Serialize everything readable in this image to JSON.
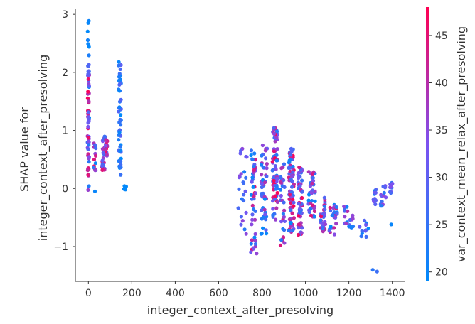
{
  "chart_data": {
    "type": "scatter",
    "title": "",
    "xlabel": "integer_context_after_presolving",
    "ylabel_lines": [
      "SHAP value for",
      "integer_context_after_presolving"
    ],
    "xlim": [
      -60,
      1460
    ],
    "ylim": [
      -1.6,
      3.1
    ],
    "x_ticks": [
      0,
      200,
      400,
      600,
      800,
      1000,
      1200,
      1400
    ],
    "x_tick_labels": [
      "0",
      "200",
      "400",
      "600",
      "800",
      "1000",
      "1200",
      "1400"
    ],
    "y_ticks": [
      -1,
      0,
      1,
      2,
      3
    ],
    "y_tick_labels": [
      "−1",
      "0",
      "1",
      "2",
      "3"
    ],
    "grid": false,
    "colorbar": {
      "label": "var_context_mean_relax_after_presolving",
      "range": [
        19,
        48
      ],
      "ticks": [
        20,
        25,
        30,
        35,
        40,
        45
      ],
      "tick_labels": [
        "20",
        "25",
        "30",
        "35",
        "40",
        "45"
      ],
      "colors": [
        "#008afb",
        "#7c52f0",
        "#ff0052"
      ]
    },
    "clusters": [
      {
        "x": 0,
        "xspread": 4,
        "ymin": -0.05,
        "ymax": 2.9,
        "n": 70,
        "cmin": 19,
        "cmax": 48,
        "skew_top_blue": true
      },
      {
        "x": 28,
        "xspread": 6,
        "ymin": 0.3,
        "ymax": 0.8,
        "n": 14,
        "cmin": 19,
        "cmax": 46
      },
      {
        "x": 75,
        "xspread": 12,
        "ymin": 0.3,
        "ymax": 0.95,
        "n": 45,
        "cmin": 25,
        "cmax": 48
      },
      {
        "x": 145,
        "xspread": 6,
        "ymin": 0.2,
        "ymax": 2.2,
        "n": 55,
        "cmin": 19,
        "cmax": 30
      },
      {
        "x": 168,
        "xspread": 6,
        "ymin": -0.02,
        "ymax": 0.05,
        "n": 5,
        "cmin": 19,
        "cmax": 20
      },
      {
        "x": 710,
        "xspread": 20,
        "ymin": -0.8,
        "ymax": 0.7,
        "n": 25,
        "cmin": 19,
        "cmax": 36
      },
      {
        "x": 760,
        "xspread": 12,
        "ymin": -1.1,
        "ymax": 0.8,
        "n": 45,
        "cmin": 19,
        "cmax": 46
      },
      {
        "x": 810,
        "xspread": 14,
        "ymin": -0.8,
        "ymax": 0.75,
        "n": 50,
        "cmin": 19,
        "cmax": 40
      },
      {
        "x": 860,
        "xspread": 12,
        "ymin": -0.55,
        "ymax": 1.1,
        "n": 80,
        "cmin": 22,
        "cmax": 48
      },
      {
        "x": 895,
        "xspread": 10,
        "ymin": -0.95,
        "ymax": 0.5,
        "n": 30,
        "cmin": 22,
        "cmax": 44
      },
      {
        "x": 935,
        "xspread": 12,
        "ymin": -0.75,
        "ymax": 0.7,
        "n": 90,
        "cmin": 19,
        "cmax": 48
      },
      {
        "x": 975,
        "xspread": 10,
        "ymin": -0.8,
        "ymax": 0.4,
        "n": 60,
        "cmin": 24,
        "cmax": 48
      },
      {
        "x": 1030,
        "xspread": 16,
        "ymin": -0.5,
        "ymax": 0.3,
        "n": 40,
        "cmin": 19,
        "cmax": 46
      },
      {
        "x": 1080,
        "xspread": 12,
        "ymin": -0.75,
        "ymax": -0.15,
        "n": 30,
        "cmin": 22,
        "cmax": 46
      },
      {
        "x": 1130,
        "xspread": 20,
        "ymin": -0.8,
        "ymax": -0.25,
        "n": 25,
        "cmin": 19,
        "cmax": 44
      },
      {
        "x": 1200,
        "xspread": 24,
        "ymin": -0.7,
        "ymax": -0.3,
        "n": 20,
        "cmin": 19,
        "cmax": 40
      },
      {
        "x": 1270,
        "xspread": 20,
        "ymin": -0.85,
        "ymax": -0.55,
        "n": 10,
        "cmin": 19,
        "cmax": 34
      },
      {
        "x": 1320,
        "xspread": 8,
        "ymin": -0.3,
        "ymax": 0.0,
        "n": 10,
        "cmin": 22,
        "cmax": 34
      },
      {
        "x": 1360,
        "xspread": 14,
        "ymin": -0.3,
        "ymax": 0.05,
        "n": 14,
        "cmin": 22,
        "cmax": 36
      },
      {
        "x": 1395,
        "xspread": 6,
        "ymin": -0.1,
        "ymax": 0.1,
        "n": 10,
        "cmin": 24,
        "cmax": 34
      }
    ],
    "extra_points": [
      {
        "x": 30,
        "y": -0.05,
        "c": 20
      },
      {
        "x": 140,
        "y": 2.18,
        "c": 20
      },
      {
        "x": 1310,
        "y": -1.4,
        "c": 24
      },
      {
        "x": 1330,
        "y": -1.43,
        "c": 26
      },
      {
        "x": 1395,
        "y": -0.62,
        "c": 20
      },
      {
        "x": 1250,
        "y": -0.66,
        "c": 30
      },
      {
        "x": 885,
        "y": -0.98,
        "c": 44
      },
      {
        "x": 775,
        "y": -1.12,
        "c": 36
      }
    ]
  }
}
